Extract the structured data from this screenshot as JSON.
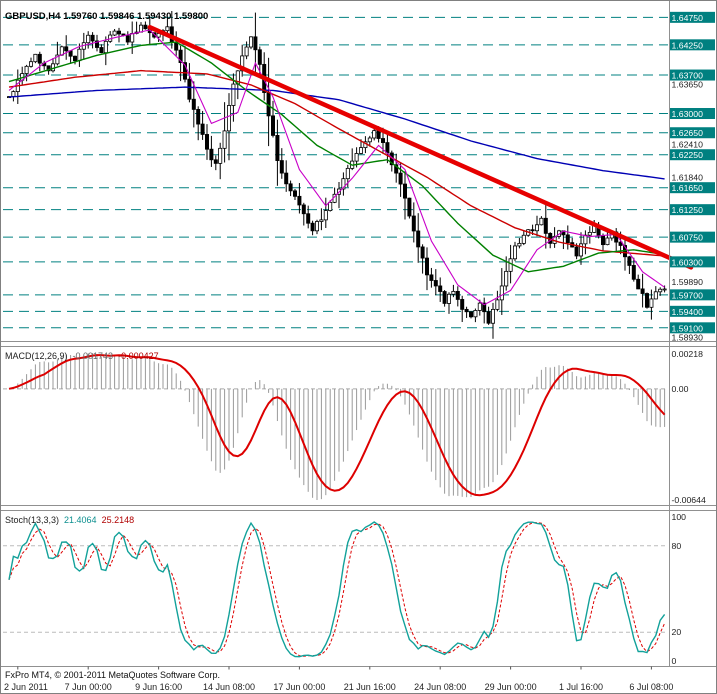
{
  "window": {
    "background": "#ffffff",
    "frame_color": "#808080",
    "footer_credit": "FxPro MT4, © 2001-2011 MetaQuotes Software Corp."
  },
  "chart_data": [
    {
      "type": "candlestick",
      "title": "GBPUSD,H4 1.59760 1.59846 1.59430 1.59800",
      "symbol": "GBPUSD",
      "timeframe": "H4",
      "current_bar": {
        "open": 1.5976,
        "high": 1.59846,
        "low": 1.5943,
        "close": 1.598
      },
      "bars": 150,
      "ylim": [
        1.5886,
        1.6492
      ],
      "close_path": [
        [
          0,
          1.633
        ],
        [
          3,
          1.6375
        ],
        [
          6,
          1.6405
        ],
        [
          9,
          1.638
        ],
        [
          12,
          1.6425
        ],
        [
          15,
          1.64
        ],
        [
          18,
          1.644
        ],
        [
          21,
          1.6415
        ],
        [
          24,
          1.645
        ],
        [
          27,
          1.643
        ],
        [
          30,
          1.6465
        ],
        [
          33,
          1.6438
        ],
        [
          36,
          1.6455
        ],
        [
          39,
          1.639
        ],
        [
          41,
          1.633
        ],
        [
          43,
          1.628
        ],
        [
          45,
          1.6235
        ],
        [
          47,
          1.6205
        ],
        [
          49,
          1.627
        ],
        [
          51,
          1.635
        ],
        [
          53,
          1.641
        ],
        [
          55,
          1.644
        ],
        [
          57,
          1.6385
        ],
        [
          59,
          1.63
        ],
        [
          61,
          1.621
        ],
        [
          63,
          1.617
        ],
        [
          65,
          1.6148
        ],
        [
          67,
          1.6118
        ],
        [
          69,
          1.6088
        ],
        [
          71,
          1.6108
        ],
        [
          73,
          1.614
        ],
        [
          75,
          1.6168
        ],
        [
          77,
          1.6198
        ],
        [
          79,
          1.6222
        ],
        [
          81,
          1.6248
        ],
        [
          83,
          1.6268
        ],
        [
          85,
          1.6242
        ],
        [
          87,
          1.6212
        ],
        [
          89,
          1.617
        ],
        [
          91,
          1.6115
        ],
        [
          93,
          1.6058
        ],
        [
          95,
          1.6008
        ],
        [
          97,
          1.5985
        ],
        [
          99,
          1.5958
        ],
        [
          101,
          1.5978
        ],
        [
          103,
          1.5948
        ],
        [
          105,
          1.5935
        ],
        [
          107,
          1.5952
        ],
        [
          109,
          1.5922
        ],
        [
          111,
          1.5962
        ],
        [
          113,
          1.601
        ],
        [
          115,
          1.6055
        ],
        [
          117,
          1.6075
        ],
        [
          119,
          1.6092
        ],
        [
          121,
          1.6105
        ],
        [
          123,
          1.6068
        ],
        [
          125,
          1.6088
        ],
        [
          127,
          1.6062
        ],
        [
          129,
          1.6042
        ],
        [
          131,
          1.6075
        ],
        [
          133,
          1.6092
        ],
        [
          135,
          1.6065
        ],
        [
          137,
          1.6082
        ],
        [
          139,
          1.6058
        ],
        [
          141,
          1.602
        ],
        [
          143,
          1.5985
        ],
        [
          145,
          1.5952
        ],
        [
          147,
          1.5978
        ],
        [
          149,
          1.598
        ]
      ],
      "resistance_support_levels": [
        {
          "price": 1.6475,
          "label": "1.64750"
        },
        {
          "price": 1.6425,
          "label": "1.64250"
        },
        {
          "price": 1.637,
          "label": "1.63700"
        },
        {
          "price": 1.63,
          "label": "1.63000"
        },
        {
          "price": 1.6265,
          "label": "1.62650"
        },
        {
          "price": 1.6225,
          "label": "1.62250"
        },
        {
          "price": 1.6165,
          "label": "1.61650"
        },
        {
          "price": 1.6125,
          "label": "1.61250"
        },
        {
          "price": 1.6075,
          "label": "1.60750"
        },
        {
          "price": 1.603,
          "label": "1.60300"
        },
        {
          "price": 1.597,
          "label": "1.59700"
        },
        {
          "price": 1.594,
          "label": "1.59400"
        },
        {
          "price": 1.591,
          "label": "1.59100"
        }
      ],
      "axis_ticks": [
        {
          "price": 1.6365,
          "label": "1.63650",
          "dy": 6
        },
        {
          "price": 1.6241,
          "label": "1.62410",
          "dy": -2
        },
        {
          "price": 1.6184,
          "label": "1.61840",
          "dy": 0
        },
        {
          "price": 1.5989,
          "label": "1.59890",
          "dy": -3
        },
        {
          "price": 1.5893,
          "label": "1.58930",
          "dy": 0
        }
      ],
      "level_style": {
        "color": "#008080",
        "badge_text_color": "#ffffff"
      },
      "trendline": {
        "from_bar": 32,
        "from_price": 1.6457,
        "to_bar": 155,
        "to_price": 1.602,
        "color": "#e60000",
        "width": 4.5
      },
      "moving_averages": [
        {
          "name": "ma-blue",
          "color": "#0000b4",
          "width": 1.4,
          "path": [
            [
              0,
              1.633
            ],
            [
              20,
              1.6342
            ],
            [
              40,
              1.6348
            ],
            [
              60,
              1.6342
            ],
            [
              75,
              1.6325
            ],
            [
              90,
              1.629
            ],
            [
              105,
              1.625
            ],
            [
              120,
              1.6218
            ],
            [
              135,
              1.6196
            ],
            [
              150,
              1.618
            ]
          ]
        },
        {
          "name": "ma-red",
          "color": "#cc0000",
          "width": 1.4,
          "path": [
            [
              0,
              1.6348
            ],
            [
              15,
              1.6366
            ],
            [
              30,
              1.6378
            ],
            [
              45,
              1.6372
            ],
            [
              55,
              1.6352
            ],
            [
              65,
              1.6318
            ],
            [
              75,
              1.6272
            ],
            [
              85,
              1.6228
            ],
            [
              95,
              1.6184
            ],
            [
              105,
              1.6132
            ],
            [
              115,
              1.6092
            ],
            [
              125,
              1.6066
            ],
            [
              135,
              1.605
            ],
            [
              150,
              1.604
            ]
          ]
        },
        {
          "name": "ma-green",
          "color": "#008000",
          "width": 1.4,
          "path": [
            [
              0,
              1.6358
            ],
            [
              10,
              1.6382
            ],
            [
              20,
              1.6406
            ],
            [
              30,
              1.6424
            ],
            [
              38,
              1.643
            ],
            [
              46,
              1.6392
            ],
            [
              54,
              1.6342
            ],
            [
              62,
              1.6298
            ],
            [
              70,
              1.6242
            ],
            [
              78,
              1.6206
            ],
            [
              86,
              1.6216
            ],
            [
              94,
              1.6168
            ],
            [
              102,
              1.61
            ],
            [
              110,
              1.6042
            ],
            [
              118,
              1.6012
            ],
            [
              126,
              1.6022
            ],
            [
              134,
              1.6046
            ],
            [
              142,
              1.6052
            ],
            [
              150,
              1.6042
            ]
          ]
        },
        {
          "name": "ma-magenta",
          "color": "#c800c8",
          "width": 1.1,
          "path": [
            [
              0,
              1.6342
            ],
            [
              8,
              1.6392
            ],
            [
              16,
              1.6422
            ],
            [
              24,
              1.6438
            ],
            [
              32,
              1.6452
            ],
            [
              40,
              1.6388
            ],
            [
              46,
              1.6282
            ],
            [
              52,
              1.6302
            ],
            [
              56,
              1.6392
            ],
            [
              60,
              1.633
            ],
            [
              66,
              1.6198
            ],
            [
              72,
              1.6132
            ],
            [
              78,
              1.6182
            ],
            [
              84,
              1.6242
            ],
            [
              90,
              1.6198
            ],
            [
              96,
              1.6068
            ],
            [
              102,
              1.5988
            ],
            [
              108,
              1.5952
            ],
            [
              114,
              1.5978
            ],
            [
              120,
              1.6052
            ],
            [
              126,
              1.6086
            ],
            [
              132,
              1.6076
            ],
            [
              138,
              1.608
            ],
            [
              144,
              1.6012
            ],
            [
              150,
              1.5978
            ]
          ]
        }
      ],
      "candle_colors": {
        "bull_fill": "#ffffff",
        "bear_fill": "#000000",
        "outline": "#000000"
      },
      "time_ticks": [
        {
          "bar": 2,
          "label": "2 Jun 2011"
        },
        {
          "bar": 18,
          "label": "7 Jun 00:00"
        },
        {
          "bar": 34,
          "label": "9 Jun 16:00"
        },
        {
          "bar": 50,
          "label": "14 Jun 08:00"
        },
        {
          "bar": 66,
          "label": "17 Jun 00:00"
        },
        {
          "bar": 82,
          "label": "21 Jun 16:00"
        },
        {
          "bar": 98,
          "label": "24 Jun 08:00"
        },
        {
          "bar": 114,
          "label": "29 Jun 00:00"
        },
        {
          "bar": 130,
          "label": "1 Jul 16:00"
        },
        {
          "bar": 146,
          "label": "6 Jul 08:00"
        }
      ]
    },
    {
      "type": "macd",
      "label": "MACD(12,26,9)",
      "value_main": "-0.001743",
      "value_signal": "-0.000427",
      "params": {
        "fast": 12,
        "slow": 26,
        "signal": 9
      },
      "scale_max_label": "0.00218",
      "scale_zero_label": "0.00",
      "scale_min_label": "-0.00644",
      "histogram_color": "#999999",
      "signal_color": "#dd0000"
    },
    {
      "type": "stochastic",
      "label": "Stoch(13,3,3)",
      "value_k": "21.4064",
      "value_d": "25.2148",
      "params": {
        "k": 13,
        "slowing": 3,
        "d": 3
      },
      "scale_labels": [
        "100",
        "80",
        "20",
        "0"
      ],
      "level_lines": [
        80,
        20
      ],
      "k_color": "#12a19a",
      "d_color": "#dd0000"
    }
  ]
}
